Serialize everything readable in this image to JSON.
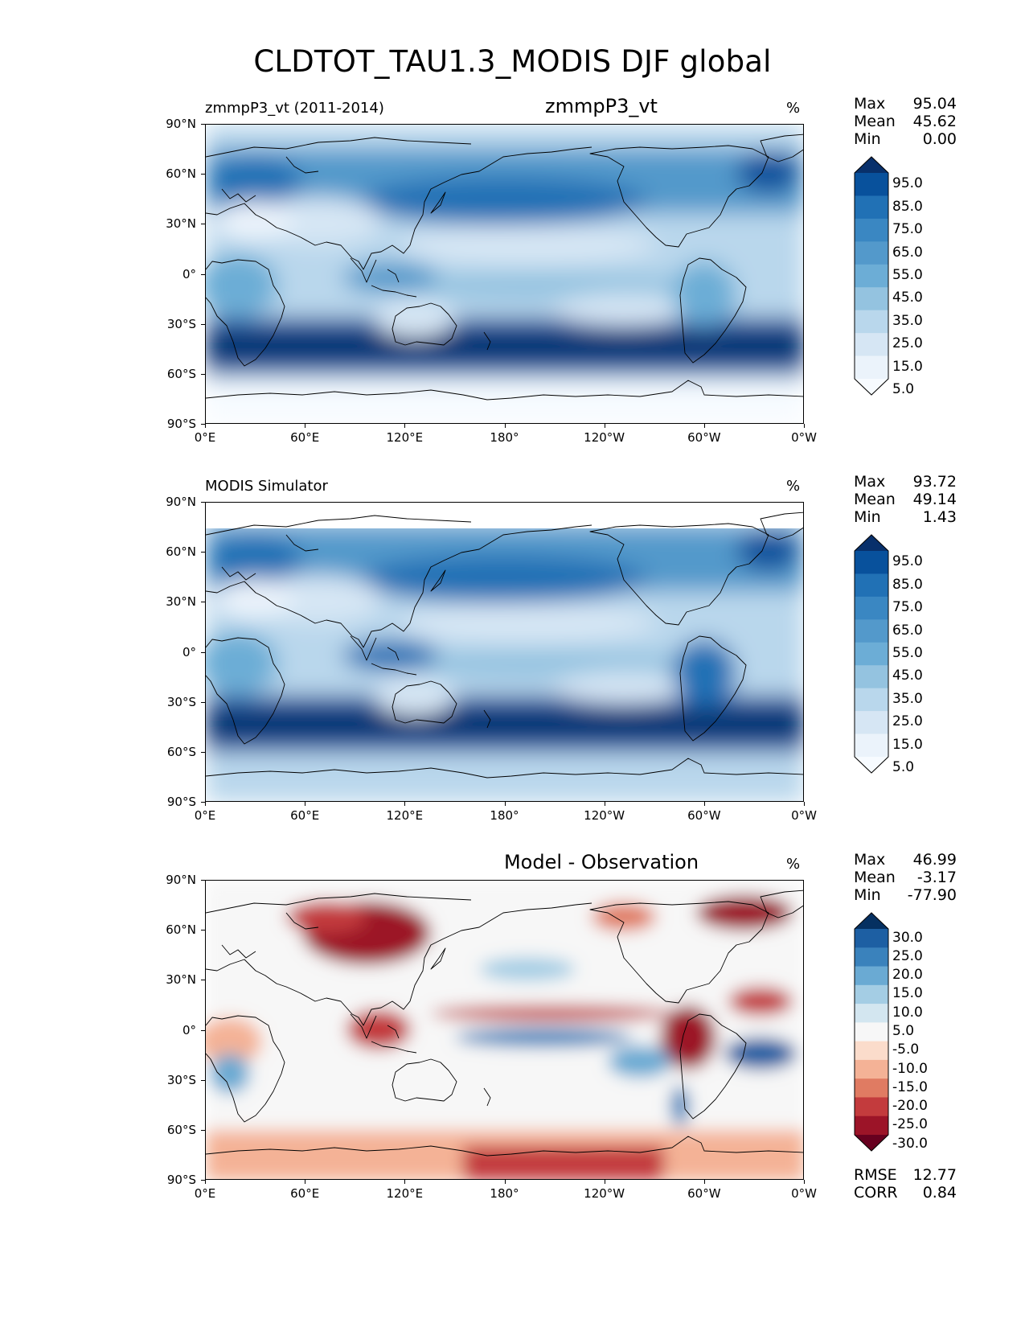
{
  "figure": {
    "title": "CLDTOT_TAU1.3_MODIS DJF global"
  },
  "axes": {
    "yticks": [
      "90°N",
      "60°N",
      "30°N",
      "0°",
      "30°S",
      "60°S",
      "90°S"
    ],
    "xticks": [
      "0°E",
      "60°E",
      "120°E",
      "180°",
      "120°W",
      "60°W",
      "0°W"
    ]
  },
  "panels": [
    {
      "id": "test",
      "left_title": "zmmpP3_vt (2011-2014)",
      "center_title": "zmmpP3_vt",
      "units": "%",
      "stats": [
        {
          "label": "Max",
          "value": "95.04"
        },
        {
          "label": "Mean",
          "value": "45.62"
        },
        {
          "label": "Min",
          "value": "0.00"
        }
      ],
      "colorbar": {
        "labels": [
          "95.0",
          "85.0",
          "75.0",
          "65.0",
          "55.0",
          "45.0",
          "35.0",
          "25.0",
          "15.0",
          "5.0"
        ],
        "colors": [
          "#08306b",
          "#08519c",
          "#2171b5",
          "#3a87c2",
          "#5399cb",
          "#6cadd6",
          "#94c3e0",
          "#b9d7ec",
          "#d6e6f4",
          "#ebf3fb",
          "#f7fbff"
        ]
      }
    },
    {
      "id": "reference",
      "left_title": "MODIS Simulator",
      "center_title": "",
      "units": "%",
      "stats": [
        {
          "label": "Max",
          "value": "93.72"
        },
        {
          "label": "Mean",
          "value": "49.14"
        },
        {
          "label": "Min",
          "value": "1.43"
        }
      ],
      "colorbar": {
        "labels": [
          "95.0",
          "85.0",
          "75.0",
          "65.0",
          "55.0",
          "45.0",
          "35.0",
          "25.0",
          "15.0",
          "5.0"
        ],
        "colors": [
          "#08306b",
          "#08519c",
          "#2171b5",
          "#3a87c2",
          "#5399cb",
          "#6cadd6",
          "#94c3e0",
          "#b9d7ec",
          "#d6e6f4",
          "#ebf3fb",
          "#f7fbff"
        ]
      }
    },
    {
      "id": "difference",
      "left_title": "",
      "center_title": "Model - Observation",
      "units": "%",
      "stats": [
        {
          "label": "Max",
          "value": "46.99"
        },
        {
          "label": "Mean",
          "value": "-3.17"
        },
        {
          "label": "Min",
          "value": "-77.90"
        }
      ],
      "bottom_stats": [
        {
          "label": "RMSE",
          "value": "12.77"
        },
        {
          "label": "CORR",
          "value": "0.84"
        }
      ],
      "colorbar": {
        "labels": [
          "30.0",
          "25.0",
          "20.0",
          "15.0",
          "10.0",
          "5.0",
          "-5.0",
          "-10.0",
          "-15.0",
          "-20.0",
          "-25.0",
          "-30.0"
        ],
        "colors": [
          "#053061",
          "#1d5fa3",
          "#3a82bc",
          "#6aaad3",
          "#a4cde4",
          "#d3e6f0",
          "#f7f7f7",
          "#fbdccb",
          "#f4b296",
          "#e07b62",
          "#c33b3d",
          "#9c1428",
          "#67001f"
        ]
      }
    }
  ]
}
